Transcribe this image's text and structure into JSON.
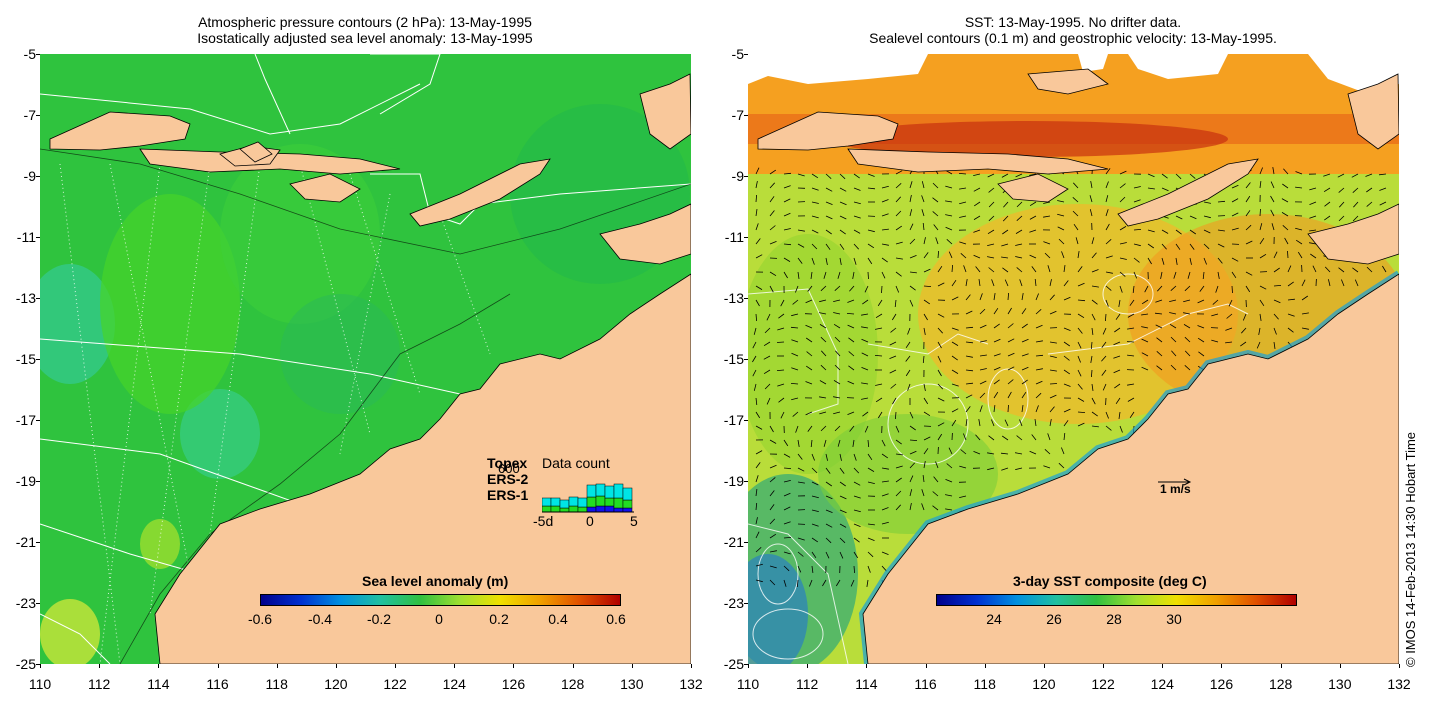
{
  "left_panel": {
    "title_line1": "Atmospheric pressure contours (2 hPa): 13-May-1995",
    "title_line2": "Isostatically adjusted sea level anomaly: 13-May-1995",
    "colorbar": {
      "label": "Sea level anomaly (m)",
      "ticks": [
        "-0.6",
        "-0.4",
        "-0.2",
        "0",
        "0.2",
        "0.4",
        "0.6"
      ]
    },
    "data_count": {
      "title": "Data count",
      "max_label": "600",
      "series_labels": [
        "Topex",
        "ERS-2",
        "ERS-1"
      ],
      "series_colors": [
        "#00e5e5",
        "#22dd22",
        "#1010ee"
      ],
      "x_ticks": [
        "-5d",
        "0",
        "5"
      ]
    }
  },
  "right_panel": {
    "title_line1": "SST: 13-May-1995. No drifter data.",
    "title_line2": "Sealevel contours (0.1 m) and geostrophic velocity: 13-May-1995.",
    "velocity_scale_label": "1 m/s",
    "colorbar": {
      "label": "3-day SST composite (deg C)",
      "ticks": [
        "24",
        "26",
        "28",
        "30"
      ]
    }
  },
  "axes": {
    "y_ticks": [
      "-5",
      "-7",
      "-9",
      "-11",
      "-13",
      "-15",
      "-17",
      "-19",
      "-21",
      "-23",
      "-25"
    ],
    "x_ticks": [
      "110",
      "112",
      "114",
      "116",
      "118",
      "120",
      "122",
      "124",
      "126",
      "128",
      "130",
      "132"
    ]
  },
  "credit": "© IMOS 14-Feb-2013 14:30 Hobart Time",
  "colors": {
    "land": "#f9c89b",
    "sea_left": "#2fc33e",
    "sea_right": "#b9dd3a"
  }
}
